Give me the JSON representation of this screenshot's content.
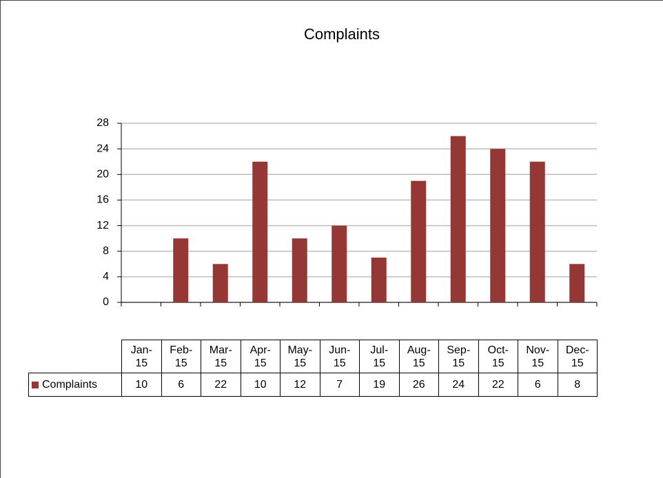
{
  "chart_data": {
    "type": "bar",
    "title": "Complaints",
    "categories": [
      "Jan-15",
      "Feb-15",
      "Mar-15",
      "Apr-15",
      "May-15",
      "Jun-15",
      "Jul-15",
      "Aug-15",
      "Sep-15",
      "Oct-15",
      "Nov-15",
      "Dec-15"
    ],
    "series": [
      {
        "name": "Complaints",
        "color": "#953735",
        "values": [
          10,
          6,
          22,
          10,
          12,
          7,
          19,
          26,
          24,
          22,
          6,
          8
        ]
      }
    ],
    "ylim": [
      0,
      28
    ],
    "yticks": [
      0,
      4,
      8,
      12,
      16,
      20,
      24,
      28
    ],
    "grid": true
  }
}
